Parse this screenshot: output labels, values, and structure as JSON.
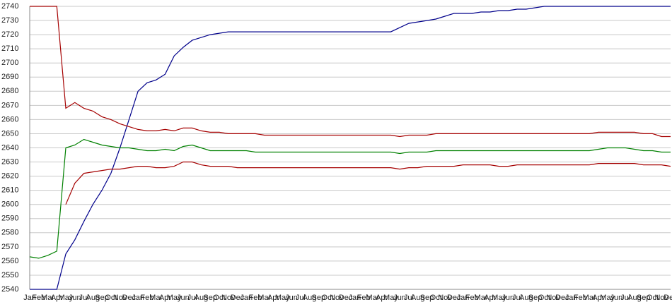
{
  "chart_data": {
    "type": "line",
    "categories": [
      "Jan",
      "Feb",
      "Mar",
      "Apr",
      "May",
      "Jun",
      "Jul",
      "Aug",
      "Sep",
      "Oct",
      "Nov",
      "Dec",
      "Jan",
      "Feb",
      "Mar",
      "Apr",
      "May",
      "Jun",
      "Jul",
      "Aug",
      "Sep",
      "Oct",
      "Nov",
      "Dec",
      "Jan",
      "Feb",
      "Mar",
      "Apr",
      "May",
      "Jun",
      "Jul",
      "Aug",
      "Sep",
      "Oct",
      "Nov",
      "Dec",
      "Jan",
      "Feb",
      "Mar",
      "Apr",
      "May",
      "Jun",
      "Jul",
      "Aug",
      "Sep",
      "Oct",
      "Nov",
      "Dec",
      "Jan",
      "Feb",
      "Mar",
      "Apr",
      "May",
      "Jun",
      "Jul",
      "Aug",
      "Sep",
      "Oct",
      "Nov",
      "Dec",
      "Jan",
      "Feb",
      "Mar",
      "Apr",
      "May",
      "Jun",
      "Jul",
      "Aug",
      "Sep",
      "Oct",
      "Nov",
      "Dec"
    ],
    "series": [
      {
        "color": "#00008b",
        "values": [
          2540,
          2540,
          2540,
          2540,
          2565,
          2575,
          2588,
          2600,
          2610,
          2622,
          2640,
          2660,
          2680,
          2686,
          2688,
          2692,
          2705,
          2711,
          2716,
          2718,
          2720,
          2721,
          2722,
          2722,
          2722,
          2722,
          2722,
          2722,
          2722,
          2722,
          2722,
          2722,
          2722,
          2722,
          2722,
          2722,
          2722,
          2722,
          2722,
          2722,
          2722,
          2725,
          2728,
          2729,
          2730,
          2731,
          2733,
          2735,
          2735,
          2735,
          2736,
          2736,
          2737,
          2737,
          2738,
          2738,
          2739,
          2740,
          2740,
          2740,
          2740,
          2740,
          2740,
          2740,
          2740,
          2740,
          2740,
          2740,
          2740,
          2740,
          2740,
          2740
        ]
      },
      {
        "color": "#a50000",
        "values": [
          2740,
          2740,
          2740,
          2740,
          2668,
          2672,
          2668,
          2666,
          2662,
          2660,
          2657,
          2655,
          2653,
          2652,
          2652,
          2653,
          2652,
          2654,
          2654,
          2652,
          2651,
          2651,
          2650,
          2650,
          2650,
          2650,
          2649,
          2649,
          2649,
          2649,
          2649,
          2649,
          2649,
          2649,
          2649,
          2649,
          2649,
          2649,
          2649,
          2649,
          2649,
          2648,
          2649,
          2649,
          2649,
          2650,
          2650,
          2650,
          2650,
          2650,
          2650,
          2650,
          2650,
          2650,
          2650,
          2650,
          2650,
          2650,
          2650,
          2650,
          2650,
          2650,
          2650,
          2651,
          2651,
          2651,
          2651,
          2651,
          2650,
          2650,
          2648,
          2648
        ]
      },
      {
        "color": "#008000",
        "values": [
          2563,
          2562,
          2564,
          2567,
          2640,
          2642,
          2646,
          2644,
          2642,
          2641,
          2640,
          2640,
          2639,
          2638,
          2638,
          2639,
          2638,
          2641,
          2642,
          2640,
          2638,
          2638,
          2638,
          2638,
          2638,
          2637,
          2637,
          2637,
          2637,
          2637,
          2637,
          2637,
          2637,
          2637,
          2637,
          2637,
          2637,
          2637,
          2637,
          2637,
          2637,
          2636,
          2637,
          2637,
          2637,
          2638,
          2638,
          2638,
          2638,
          2638,
          2638,
          2638,
          2638,
          2638,
          2638,
          2638,
          2638,
          2638,
          2638,
          2638,
          2638,
          2638,
          2638,
          2639,
          2640,
          2640,
          2640,
          2639,
          2638,
          2638,
          2637,
          2637
        ]
      },
      {
        "color": "#a50000",
        "values": [
          null,
          null,
          null,
          null,
          2600,
          2615,
          2622,
          2623,
          2624,
          2625,
          2625,
          2626,
          2627,
          2627,
          2626,
          2626,
          2627,
          2630,
          2630,
          2628,
          2627,
          2627,
          2627,
          2626,
          2626,
          2626,
          2626,
          2626,
          2626,
          2626,
          2626,
          2626,
          2626,
          2626,
          2626,
          2626,
          2626,
          2626,
          2626,
          2626,
          2626,
          2625,
          2626,
          2626,
          2627,
          2627,
          2627,
          2627,
          2628,
          2628,
          2628,
          2628,
          2627,
          2627,
          2628,
          2628,
          2628,
          2628,
          2628,
          2628,
          2628,
          2628,
          2628,
          2629,
          2629,
          2629,
          2629,
          2629,
          2628,
          2628,
          2628,
          2627
        ]
      }
    ],
    "ylim": [
      2540,
      2740
    ],
    "yticks": [
      2540,
      2550,
      2560,
      2570,
      2580,
      2590,
      2600,
      2610,
      2620,
      2630,
      2640,
      2650,
      2660,
      2670,
      2680,
      2690,
      2700,
      2710,
      2720,
      2730,
      2740
    ],
    "grid": true
  }
}
